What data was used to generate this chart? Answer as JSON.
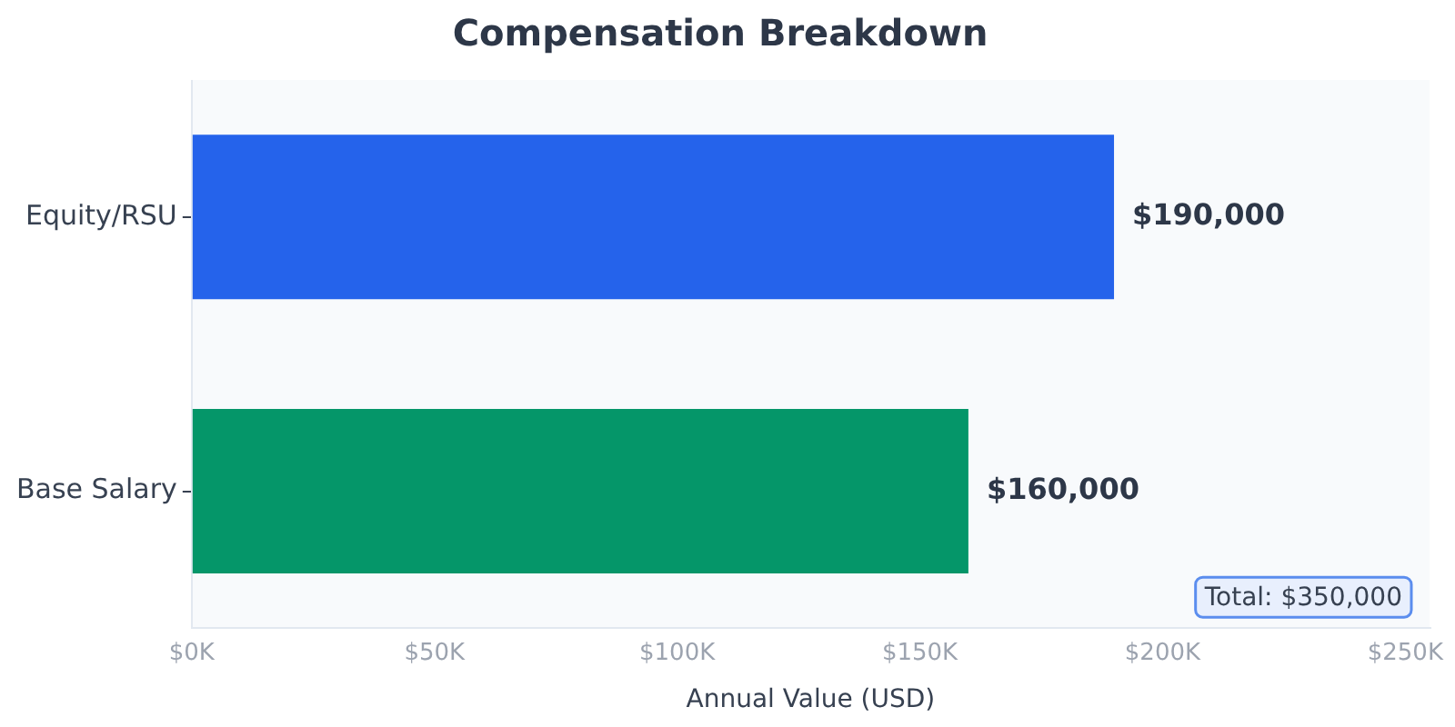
{
  "chart_data": {
    "type": "bar",
    "orientation": "horizontal",
    "title": "Compensation Breakdown",
    "xlabel": "Annual Value (USD)",
    "categories": [
      "Equity/RSU",
      "Base Salary"
    ],
    "values": [
      190000,
      160000
    ],
    "colors": [
      "#2563eb",
      "#059669"
    ],
    "value_labels": [
      "$190,000",
      "$160,000"
    ],
    "xlim": [
      0,
      255000
    ],
    "xticks": [
      {
        "value": 0,
        "label": "$0K"
      },
      {
        "value": 50000,
        "label": "$50K"
      },
      {
        "value": 100000,
        "label": "$100K"
      },
      {
        "value": 150000,
        "label": "$150K"
      },
      {
        "value": 200000,
        "label": "$200K"
      },
      {
        "value": 250000,
        "label": "$250K"
      }
    ],
    "annotations": [
      "Total: $350,000"
    ]
  }
}
